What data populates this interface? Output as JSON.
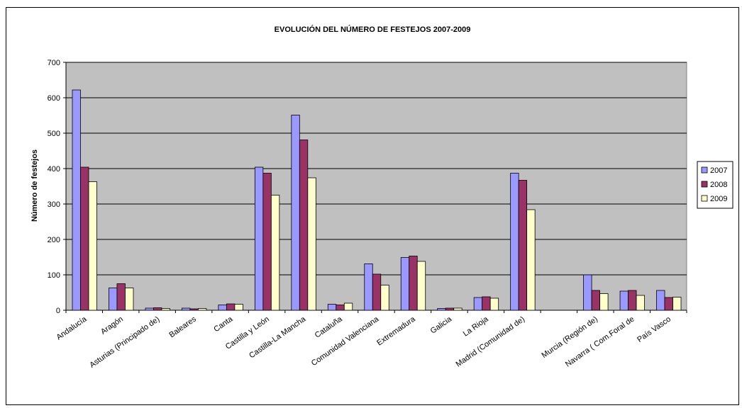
{
  "chart_data": {
    "type": "bar",
    "title": "EVOLUCIÓN DEL NÚMERO DE FESTEJOS  2007-2009",
    "xlabel": "",
    "ylabel": "Número de festejos",
    "ylim": [
      0,
      700
    ],
    "yticks": [
      0,
      100,
      200,
      300,
      400,
      500,
      600,
      700
    ],
    "grid": true,
    "legend_position": "right",
    "plot_background": "#c0c0c0",
    "categories": [
      "Andalucía",
      "Aragón",
      "Asturias (Principado de)",
      "Baleares",
      "Canta",
      "Castilla y León",
      "Castilla-La Mancha",
      "Cataluña",
      "Comunidad Valenciana",
      "Extremadura",
      "Galicia",
      "La Rioja",
      "Madrid (Comunidad de)",
      "",
      "Murcia (Región de)",
      "Navarra ( Com.Foral de",
      "País Vasco"
    ],
    "series": [
      {
        "name": "2007",
        "color": "#9999ff",
        "values": [
          622,
          63,
          6,
          6,
          15,
          404,
          551,
          17,
          131,
          149,
          5,
          36,
          387,
          0,
          100,
          54,
          56
        ]
      },
      {
        "name": "2008",
        "color": "#993366",
        "values": [
          404,
          75,
          7,
          4,
          18,
          387,
          481,
          15,
          102,
          153,
          6,
          38,
          367,
          0,
          56,
          56,
          36
        ]
      },
      {
        "name": "2009",
        "color": "#ffffcc",
        "values": [
          363,
          63,
          5,
          5,
          17,
          325,
          374,
          20,
          71,
          138,
          6,
          34,
          284,
          0,
          47,
          42,
          37
        ]
      }
    ]
  }
}
